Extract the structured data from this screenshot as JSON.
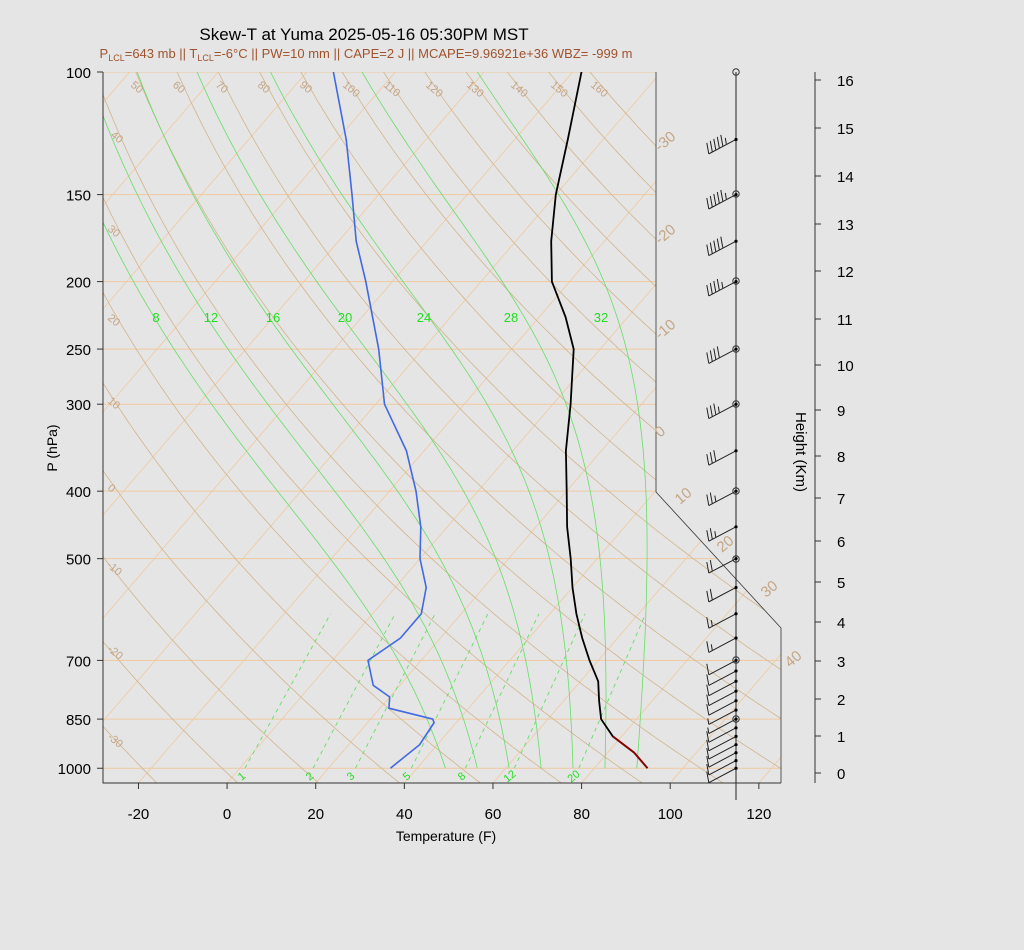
{
  "title": "Skew-T at Yuma 2025-05-16 05:30PM MST",
  "subtitle": {
    "p_lcl": "=643 mb",
    "t_lcl": "=-6°C",
    "rest": " || PW=10 mm || CAPE=2 J || MCAPE=9.96921e+36 WBZ= -999 m"
  },
  "colors": {
    "background": "#e5e5e5",
    "temperature": "#000000",
    "dewpoint": "#4169e1",
    "parcel": "#8b0000",
    "isobar": "#f0c9a0",
    "dry_adiabat": "#d2b48c",
    "moist_adiabat": "#66dd66",
    "mixing_ratio": "#66dd66",
    "wind_barb": "#222222"
  },
  "chart_data": {
    "type": "skew-t",
    "xlabel": "Temperature (F)",
    "ylabel": "P (hPa)",
    "y2label": "Height (Km)",
    "xlim": [
      -28,
      125
    ],
    "ylim": [
      1050,
      100
    ],
    "y_scale": "log",
    "x_ticks": [
      -20,
      0,
      20,
      40,
      60,
      80,
      100,
      120
    ],
    "p_ticks": [
      100,
      150,
      200,
      250,
      300,
      400,
      500,
      700,
      850,
      1000
    ],
    "height_ticks": [
      0,
      1,
      2,
      3,
      4,
      5,
      6,
      7,
      8,
      9,
      10,
      11,
      12,
      13,
      14,
      15,
      16
    ],
    "dry_adiabat_labels": [
      -30,
      -20,
      -10,
      0,
      10,
      20,
      30,
      40,
      50,
      60,
      70,
      80,
      90,
      100,
      110,
      120,
      130,
      140,
      150,
      160
    ],
    "moist_adiabat_labels": [
      8,
      12,
      16,
      20,
      24,
      28,
      32
    ],
    "mixing_ratio_labels": [
      1,
      2,
      3,
      5,
      8,
      12,
      20
    ],
    "side_temp_labels": [
      40,
      30,
      20,
      10,
      0,
      -10,
      -20,
      -30
    ],
    "temperature": {
      "name": "Temperature",
      "p": [
        1000,
        950,
        900,
        850,
        800,
        750,
        700,
        650,
        600,
        550,
        500,
        450,
        400,
        350,
        300,
        250,
        225,
        200,
        175,
        150,
        125,
        100
      ],
      "t": [
        92,
        86,
        78,
        72,
        68,
        64,
        58,
        52,
        46,
        40,
        34,
        27,
        20,
        12,
        4,
        -6,
        -14,
        -24,
        -32,
        -40,
        -48,
        -58
      ]
    },
    "dewpoint": {
      "name": "Dewpoint",
      "p": [
        1000,
        925,
        860,
        850,
        820,
        790,
        760,
        700,
        650,
        600,
        550,
        500,
        450,
        400,
        350,
        300,
        250,
        200,
        175,
        150,
        125,
        100
      ],
      "td": [
        34,
        36,
        35,
        34,
        22,
        20,
        14,
        8,
        11,
        11,
        7,
        0,
        -6,
        -14,
        -24,
        -38,
        -50,
        -66,
        -76,
        -86,
        -98,
        -114
      ]
    },
    "parcel": {
      "name": "Parcel",
      "p": [
        1000,
        950,
        900
      ],
      "t": [
        92,
        86,
        78
      ]
    },
    "wind_barbs": {
      "p": [
        1000,
        975,
        950,
        925,
        900,
        875,
        850,
        825,
        800,
        775,
        750,
        725,
        700,
        650,
        600,
        550,
        500,
        450,
        400,
        350,
        300,
        250,
        200,
        175,
        150,
        125
      ],
      "speed_kt": [
        10,
        10,
        10,
        10,
        10,
        10,
        5,
        5,
        10,
        10,
        10,
        10,
        10,
        15,
        15,
        20,
        20,
        25,
        25,
        30,
        35,
        40,
        45,
        50,
        55,
        55
      ]
    }
  }
}
